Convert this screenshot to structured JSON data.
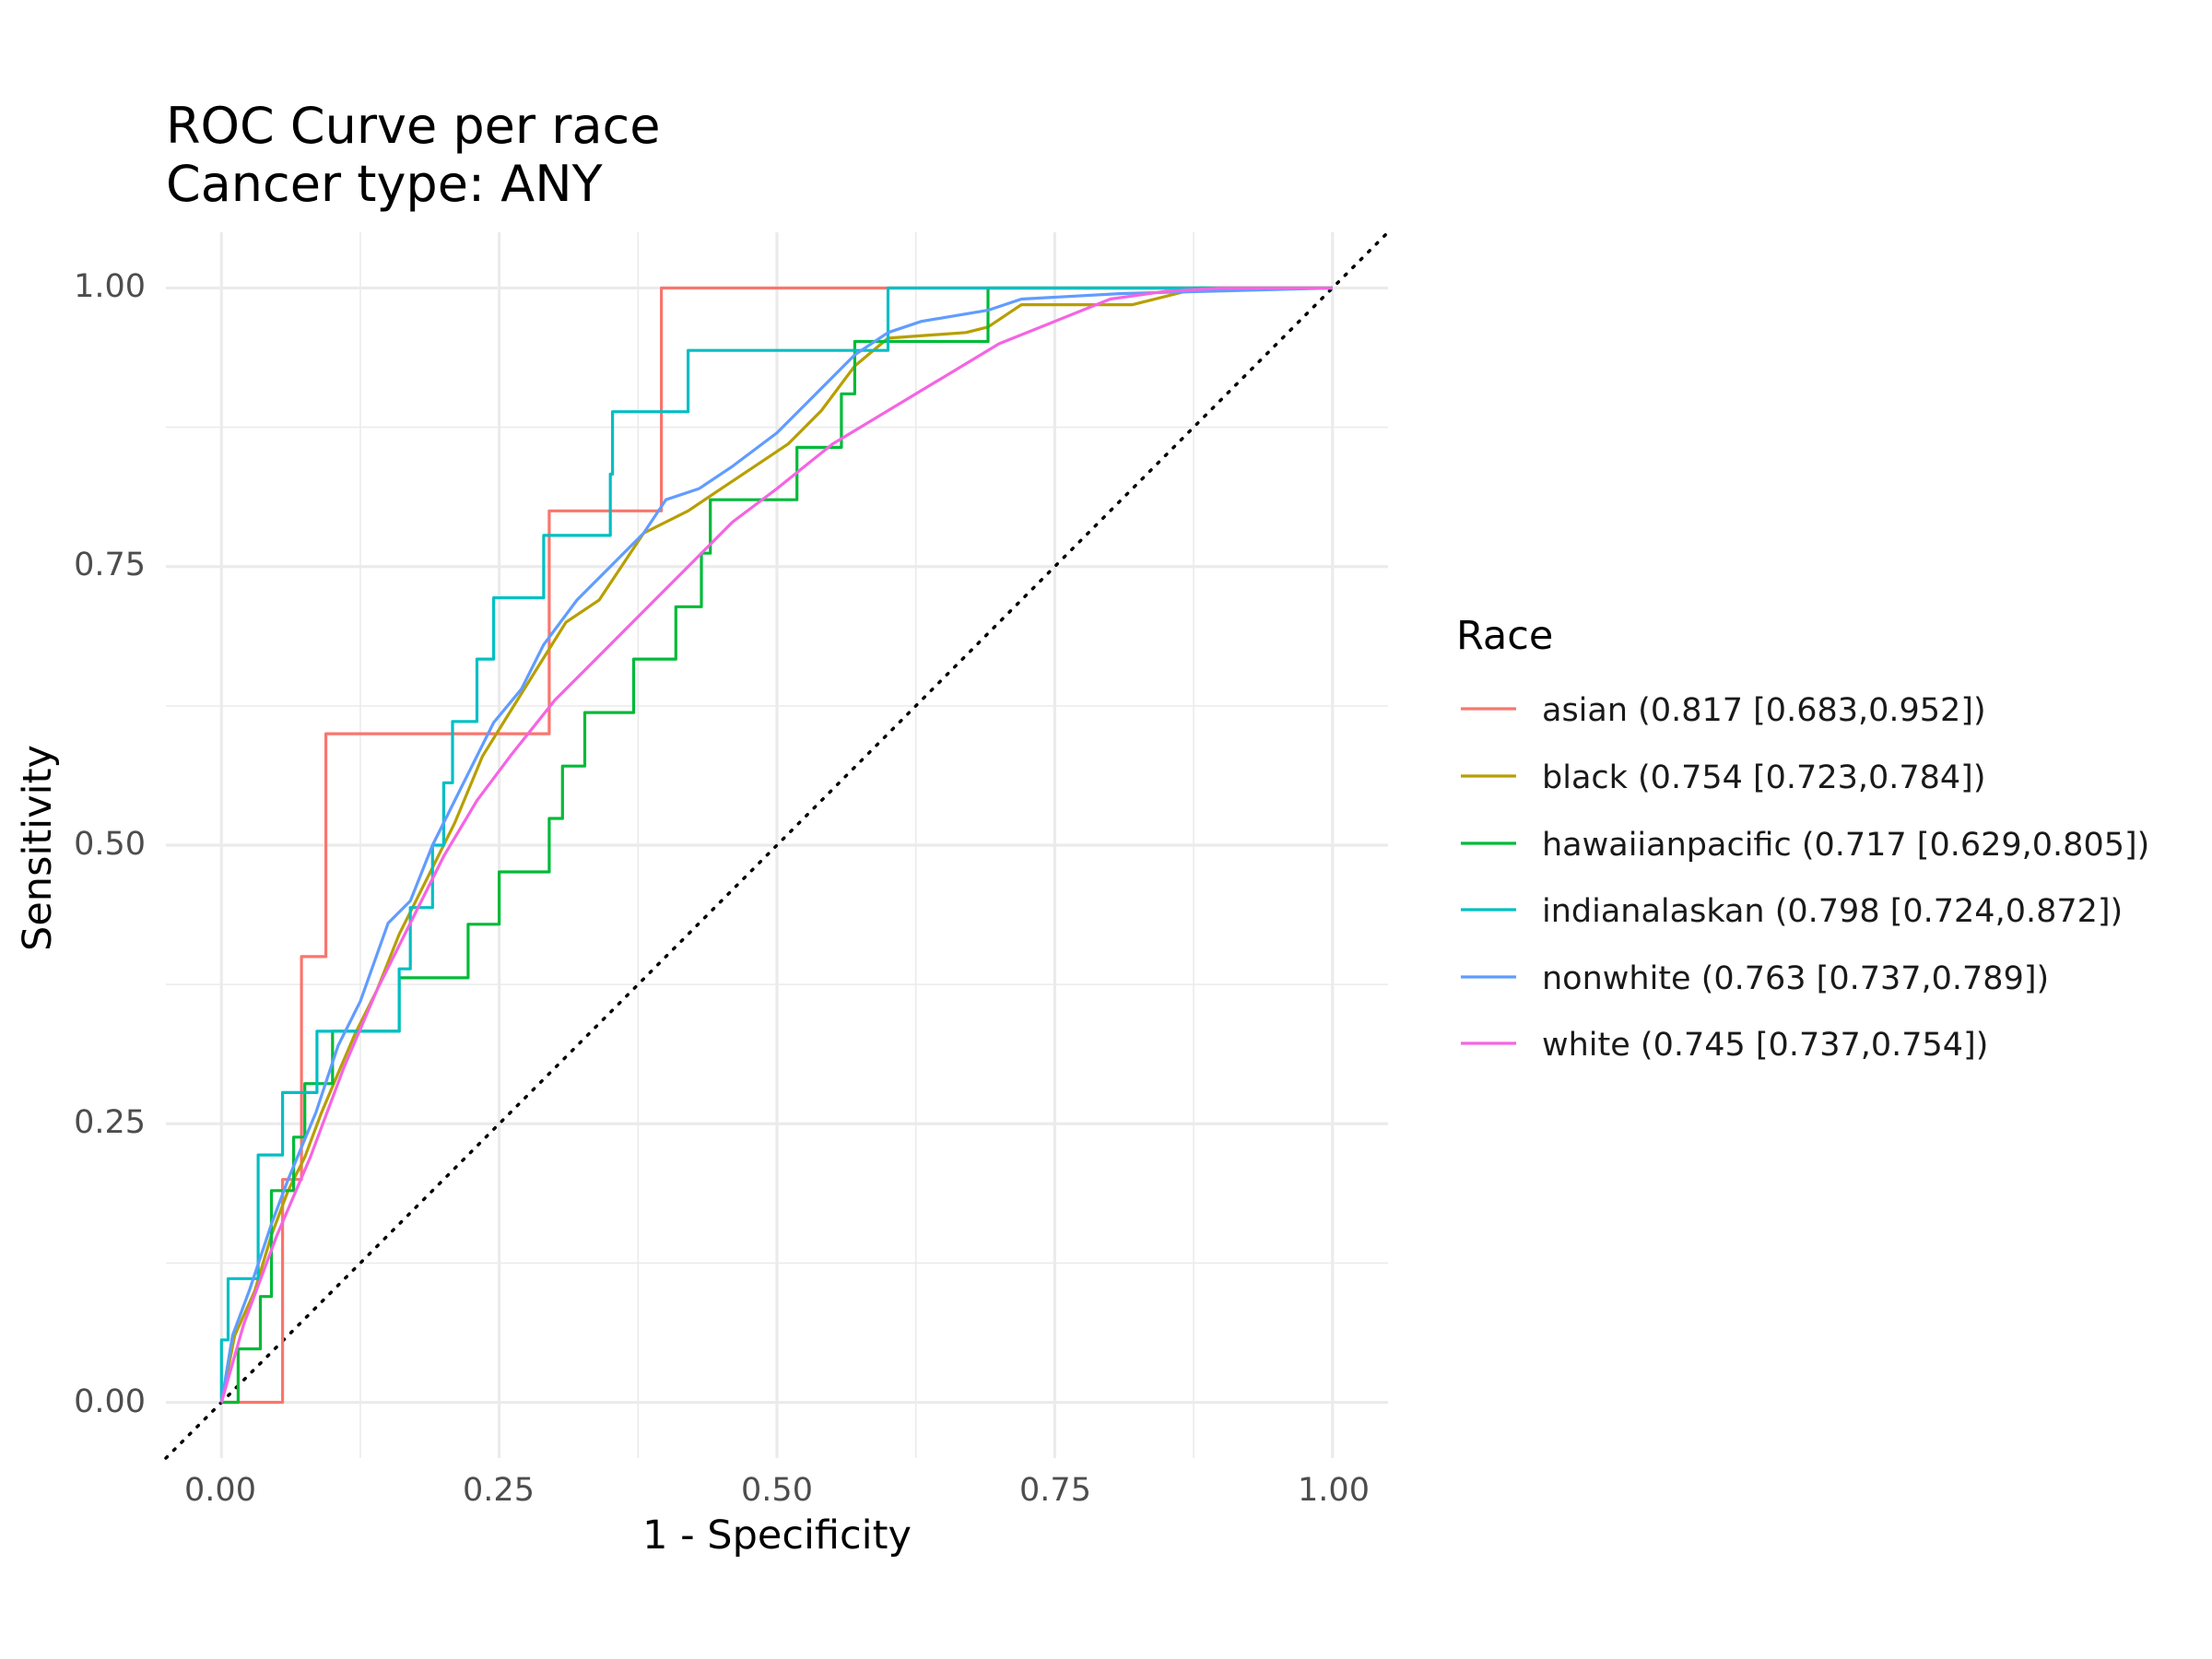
{
  "chart_data": {
    "type": "line",
    "title": "ROC Curve per race",
    "subtitle": "Cancer type: ANY",
    "xlabel": "1 - Specificity",
    "ylabel": "Sensitivity",
    "xlim": [
      -0.05,
      1.05
    ],
    "ylim": [
      -0.05,
      1.05
    ],
    "x_ticks": [
      "0.00",
      "0.25",
      "0.50",
      "0.75",
      "1.00"
    ],
    "y_ticks": [
      "0.00",
      "0.25",
      "0.50",
      "0.75",
      "1.00"
    ],
    "grid": true,
    "legend_title": "Race",
    "legend_position": "right",
    "reference_line": {
      "style": "dotted",
      "color": "#000000",
      "from": [
        -0.05,
        -0.05
      ],
      "to": [
        1.05,
        1.05
      ]
    },
    "series": [
      {
        "name": "asian (0.817 [0.683,0.952])",
        "color": "#F8766D",
        "points": [
          [
            0,
            0
          ],
          [
            0.055,
            0
          ],
          [
            0.055,
            0.2
          ],
          [
            0.072,
            0.2
          ],
          [
            0.072,
            0.4
          ],
          [
            0.094,
            0.4
          ],
          [
            0.094,
            0.6
          ],
          [
            0.295,
            0.6
          ],
          [
            0.295,
            0.8
          ],
          [
            0.396,
            0.8
          ],
          [
            0.396,
            1.0
          ],
          [
            1.0,
            1.0
          ]
        ]
      },
      {
        "name": "black (0.754 [0.723,0.784])",
        "color": "#B79F00",
        "points": [
          [
            0,
            0
          ],
          [
            0.012,
            0.06
          ],
          [
            0.03,
            0.1
          ],
          [
            0.045,
            0.15
          ],
          [
            0.06,
            0.19
          ],
          [
            0.075,
            0.22
          ],
          [
            0.09,
            0.26
          ],
          [
            0.107,
            0.3
          ],
          [
            0.12,
            0.33
          ],
          [
            0.14,
            0.37
          ],
          [
            0.16,
            0.42
          ],
          [
            0.185,
            0.47
          ],
          [
            0.21,
            0.52
          ],
          [
            0.235,
            0.58
          ],
          [
            0.26,
            0.62
          ],
          [
            0.285,
            0.66
          ],
          [
            0.31,
            0.7
          ],
          [
            0.34,
            0.72
          ],
          [
            0.36,
            0.75
          ],
          [
            0.38,
            0.78
          ],
          [
            0.42,
            0.8
          ],
          [
            0.45,
            0.82
          ],
          [
            0.48,
            0.84
          ],
          [
            0.51,
            0.86
          ],
          [
            0.54,
            0.89
          ],
          [
            0.57,
            0.93
          ],
          [
            0.6,
            0.955
          ],
          [
            0.67,
            0.96
          ],
          [
            0.69,
            0.965
          ],
          [
            0.72,
            0.985
          ],
          [
            0.82,
            0.985
          ],
          [
            0.88,
            1.0
          ],
          [
            1.0,
            1.0
          ]
        ]
      },
      {
        "name": "hawaiianpacific (0.717 [0.629,0.805])",
        "color": "#00BA38",
        "points": [
          [
            0,
            0
          ],
          [
            0.015,
            0
          ],
          [
            0.015,
            0.048
          ],
          [
            0.035,
            0.048
          ],
          [
            0.035,
            0.095
          ],
          [
            0.045,
            0.095
          ],
          [
            0.045,
            0.19
          ],
          [
            0.065,
            0.19
          ],
          [
            0.065,
            0.238
          ],
          [
            0.075,
            0.238
          ],
          [
            0.075,
            0.286
          ],
          [
            0.1,
            0.286
          ],
          [
            0.1,
            0.333
          ],
          [
            0.16,
            0.333
          ],
          [
            0.16,
            0.381
          ],
          [
            0.222,
            0.381
          ],
          [
            0.222,
            0.429
          ],
          [
            0.25,
            0.429
          ],
          [
            0.25,
            0.476
          ],
          [
            0.295,
            0.476
          ],
          [
            0.295,
            0.524
          ],
          [
            0.307,
            0.524
          ],
          [
            0.307,
            0.571
          ],
          [
            0.327,
            0.571
          ],
          [
            0.327,
            0.619
          ],
          [
            0.371,
            0.619
          ],
          [
            0.371,
            0.667
          ],
          [
            0.409,
            0.667
          ],
          [
            0.409,
            0.714
          ],
          [
            0.432,
            0.714
          ],
          [
            0.432,
            0.762
          ],
          [
            0.44,
            0.762
          ],
          [
            0.44,
            0.81
          ],
          [
            0.518,
            0.81
          ],
          [
            0.518,
            0.857
          ],
          [
            0.558,
            0.857
          ],
          [
            0.558,
            0.905
          ],
          [
            0.57,
            0.905
          ],
          [
            0.57,
            0.952
          ],
          [
            0.69,
            0.952
          ],
          [
            0.69,
            1.0
          ],
          [
            1.0,
            1.0
          ]
        ]
      },
      {
        "name": "indianalaskan (0.798 [0.724,0.872])",
        "color": "#00BFC4",
        "points": [
          [
            0,
            0
          ],
          [
            0,
            0.056
          ],
          [
            0.006,
            0.056
          ],
          [
            0.006,
            0.111
          ],
          [
            0.033,
            0.111
          ],
          [
            0.033,
            0.222
          ],
          [
            0.055,
            0.222
          ],
          [
            0.055,
            0.278
          ],
          [
            0.086,
            0.278
          ],
          [
            0.086,
            0.333
          ],
          [
            0.16,
            0.333
          ],
          [
            0.16,
            0.389
          ],
          [
            0.17,
            0.389
          ],
          [
            0.17,
            0.444
          ],
          [
            0.19,
            0.444
          ],
          [
            0.19,
            0.5
          ],
          [
            0.2,
            0.5
          ],
          [
            0.2,
            0.556
          ],
          [
            0.208,
            0.556
          ],
          [
            0.208,
            0.611
          ],
          [
            0.23,
            0.611
          ],
          [
            0.23,
            0.667
          ],
          [
            0.245,
            0.667
          ],
          [
            0.245,
            0.722
          ],
          [
            0.29,
            0.722
          ],
          [
            0.29,
            0.778
          ],
          [
            0.35,
            0.778
          ],
          [
            0.35,
            0.833
          ],
          [
            0.352,
            0.833
          ],
          [
            0.352,
            0.889
          ],
          [
            0.42,
            0.889
          ],
          [
            0.42,
            0.944
          ],
          [
            0.6,
            0.944
          ],
          [
            0.6,
            1.0
          ],
          [
            1.0,
            1.0
          ]
        ]
      },
      {
        "name": "nonwhite (0.763 [0.737,0.789])",
        "color": "#619CFF",
        "points": [
          [
            0,
            0
          ],
          [
            0.01,
            0.06
          ],
          [
            0.025,
            0.1
          ],
          [
            0.045,
            0.16
          ],
          [
            0.06,
            0.2
          ],
          [
            0.085,
            0.26
          ],
          [
            0.105,
            0.32
          ],
          [
            0.125,
            0.36
          ],
          [
            0.15,
            0.43
          ],
          [
            0.17,
            0.45
          ],
          [
            0.19,
            0.5
          ],
          [
            0.215,
            0.55
          ],
          [
            0.245,
            0.61
          ],
          [
            0.27,
            0.64
          ],
          [
            0.29,
            0.68
          ],
          [
            0.32,
            0.72
          ],
          [
            0.35,
            0.75
          ],
          [
            0.38,
            0.78
          ],
          [
            0.4,
            0.81
          ],
          [
            0.43,
            0.82
          ],
          [
            0.46,
            0.84
          ],
          [
            0.5,
            0.87
          ],
          [
            0.53,
            0.9
          ],
          [
            0.57,
            0.94
          ],
          [
            0.6,
            0.96
          ],
          [
            0.63,
            0.97
          ],
          [
            0.69,
            0.98
          ],
          [
            0.72,
            0.99
          ],
          [
            0.81,
            0.995
          ],
          [
            1.0,
            1.0
          ]
        ]
      },
      {
        "name": "white (0.745 [0.737,0.754])",
        "color": "#F564E3",
        "points": [
          [
            0,
            0
          ],
          [
            0.02,
            0.07
          ],
          [
            0.05,
            0.15
          ],
          [
            0.08,
            0.22
          ],
          [
            0.11,
            0.3
          ],
          [
            0.14,
            0.37
          ],
          [
            0.17,
            0.43
          ],
          [
            0.2,
            0.49
          ],
          [
            0.23,
            0.54
          ],
          [
            0.26,
            0.58
          ],
          [
            0.3,
            0.63
          ],
          [
            0.34,
            0.67
          ],
          [
            0.38,
            0.71
          ],
          [
            0.42,
            0.75
          ],
          [
            0.46,
            0.79
          ],
          [
            0.5,
            0.82
          ],
          [
            0.55,
            0.86
          ],
          [
            0.6,
            0.89
          ],
          [
            0.65,
            0.92
          ],
          [
            0.7,
            0.95
          ],
          [
            0.75,
            0.97
          ],
          [
            0.8,
            0.99
          ],
          [
            0.85,
            0.997
          ],
          [
            0.9,
            1.0
          ],
          [
            1.0,
            1.0
          ]
        ]
      }
    ]
  }
}
